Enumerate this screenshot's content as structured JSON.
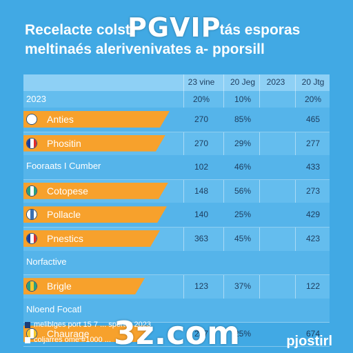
{
  "title_line1": "Recelacte colst",
  "title_line1_end": "tás esporas",
  "title_line2": "meltinaés alerivenivates a- pporsill",
  "watermark_top": "PGVIP",
  "watermark_bottom": "3z.com",
  "columns": [
    "23 vine",
    "20 Jeg",
    "2023",
    "20 Jtg"
  ],
  "top_row": {
    "label": "2023",
    "values": [
      "20%",
      "10%",
      "",
      "20%"
    ]
  },
  "rows": [
    {
      "type": "banner",
      "icon": "mask-icon",
      "label": "Anties",
      "values": [
        "270",
        "85%",
        "",
        "465"
      ],
      "banner_width": 212,
      "flag_colors": [
        "#ffffff",
        "#ffffff",
        "#ffffff"
      ]
    },
    {
      "type": "banner",
      "icon": "flag-icon",
      "label": "Phositin",
      "values": [
        "270",
        "29%",
        "",
        "277"
      ],
      "banner_width": 206,
      "flag_colors": [
        "#1c3d9c",
        "#ffffff",
        "#e02a2a"
      ]
    },
    {
      "type": "plain",
      "label": "Fooraats I Cumber",
      "values": [
        "102",
        "46%",
        "",
        "433"
      ]
    },
    {
      "type": "banner",
      "icon": "globe-icon",
      "label": "Cotopese",
      "values": [
        "148",
        "56%",
        "",
        "273"
      ],
      "banner_width": 210,
      "flag_colors": [
        "#2aa07a",
        "#ffffff",
        "#2aa07a"
      ]
    },
    {
      "type": "banner",
      "icon": "crest-icon",
      "label": "Pollacle",
      "values": [
        "140",
        "25%",
        "",
        "429"
      ],
      "banner_width": 208,
      "flag_colors": [
        "#ffffff",
        "#3a6fb0",
        "#ffffff"
      ]
    },
    {
      "type": "banner",
      "icon": "flag-icon",
      "label": "Pnestics",
      "values": [
        "363",
        "45%",
        "",
        "423"
      ],
      "banner_width": 198,
      "flag_colors": [
        "#1c3d9c",
        "#ffffff",
        "#e02a2a"
      ]
    },
    {
      "type": "plain",
      "label": "Norfactive",
      "values": [
        "",
        "",
        "",
        ""
      ]
    },
    {
      "type": "banner",
      "icon": "leaf-icon",
      "label": "Brigle",
      "values": [
        "123",
        "37%",
        "",
        "122"
      ],
      "banner_width": 176,
      "flag_colors": [
        "#2aa07a",
        "#f5c830",
        "#2aa07a"
      ]
    },
    {
      "type": "plain",
      "label": "Nloend Focatl",
      "values": [
        "",
        "",
        "",
        ""
      ]
    },
    {
      "type": "banner",
      "icon": "badge-icon",
      "label": "Chaurage",
      "values": [
        "237",
        "25%",
        "",
        "674"
      ],
      "banner_width": 184,
      "flag_colors": [
        "#f5c830",
        "#ffffff",
        "#f5c830"
      ]
    }
  ],
  "footnotes": [
    "meliblges port 15 7 ... sporter 2023",
    "coljarres ome #1000 ..."
  ],
  "brand": "pjostirl",
  "colors": {
    "background": "#41a9e4",
    "banner": "#f7a12c",
    "table": "#64bdee"
  }
}
